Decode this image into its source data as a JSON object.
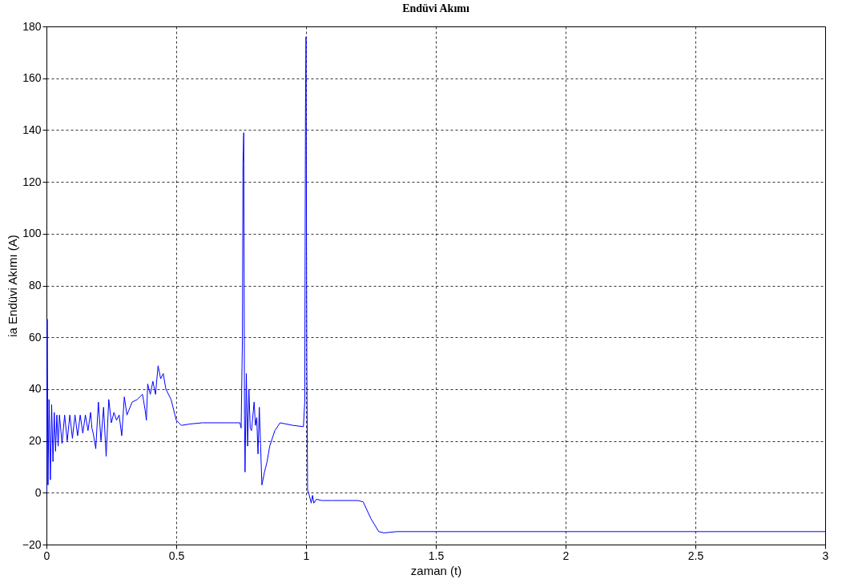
{
  "chart_data": {
    "type": "line",
    "title": "Endüvi Akımı",
    "xlabel": "zaman  (t)",
    "ylabel": "ia Endüvi Akımı (A)",
    "grid": true,
    "xlim": [
      0,
      3
    ],
    "ylim": [
      -20,
      180
    ],
    "xticks": [
      0,
      0.5,
      1,
      1.5,
      2,
      2.5,
      3
    ],
    "yticks": [
      -20,
      0,
      20,
      40,
      60,
      80,
      100,
      120,
      140,
      160,
      180
    ],
    "series": [
      {
        "color": "#0000ff",
        "x": [
          0,
          0.003,
          0.006,
          0.01,
          0.015,
          0.02,
          0.025,
          0.03,
          0.035,
          0.04,
          0.045,
          0.05,
          0.06,
          0.07,
          0.08,
          0.09,
          0.1,
          0.11,
          0.12,
          0.13,
          0.14,
          0.15,
          0.16,
          0.17,
          0.175,
          0.18,
          0.19,
          0.2,
          0.21,
          0.22,
          0.23,
          0.24,
          0.25,
          0.26,
          0.27,
          0.28,
          0.29,
          0.3,
          0.31,
          0.33,
          0.35,
          0.37,
          0.38,
          0.385,
          0.39,
          0.4,
          0.41,
          0.42,
          0.43,
          0.44,
          0.45,
          0.46,
          0.48,
          0.5,
          0.52,
          0.55,
          0.6,
          0.7,
          0.745,
          0.75,
          0.755,
          0.757,
          0.76,
          0.763,
          0.765,
          0.77,
          0.775,
          0.78,
          0.785,
          0.79,
          0.8,
          0.805,
          0.81,
          0.815,
          0.82,
          0.83,
          0.84,
          0.85,
          0.86,
          0.88,
          0.9,
          0.95,
          0.99,
          0.995,
          0.998,
          1.0,
          1.003,
          1.006,
          1.01,
          1.02,
          1.025,
          1.03,
          1.04,
          1.06,
          1.1,
          1.2,
          1.22,
          1.25,
          1.28,
          1.3,
          1.35,
          1.5,
          2,
          2.5,
          3
        ],
        "values": [
          0,
          67,
          3,
          36,
          5,
          34,
          12,
          31,
          16,
          30,
          18,
          30,
          19,
          30,
          20,
          30,
          21,
          30,
          22,
          30,
          23,
          30,
          24,
          31,
          25,
          23,
          17,
          35,
          20,
          33,
          14,
          36,
          27,
          31,
          28,
          30,
          22,
          37,
          30,
          35,
          36,
          38,
          32,
          28,
          42,
          38,
          43,
          38,
          49,
          44,
          46,
          40,
          36,
          28,
          26,
          26.5,
          27,
          27,
          27,
          25,
          60,
          127,
          139,
          30,
          8,
          46,
          18,
          40,
          25,
          24,
          35,
          26,
          29,
          15,
          33,
          3,
          8,
          12,
          18,
          24,
          27,
          26,
          25.5,
          35,
          150,
          176,
          50,
          1,
          0,
          -4,
          -1,
          -4,
          -2.5,
          -3,
          -3,
          -3,
          -3.5,
          -10,
          -15,
          -15.5,
          -15,
          -15,
          -15,
          -15,
          -15
        ]
      }
    ]
  }
}
